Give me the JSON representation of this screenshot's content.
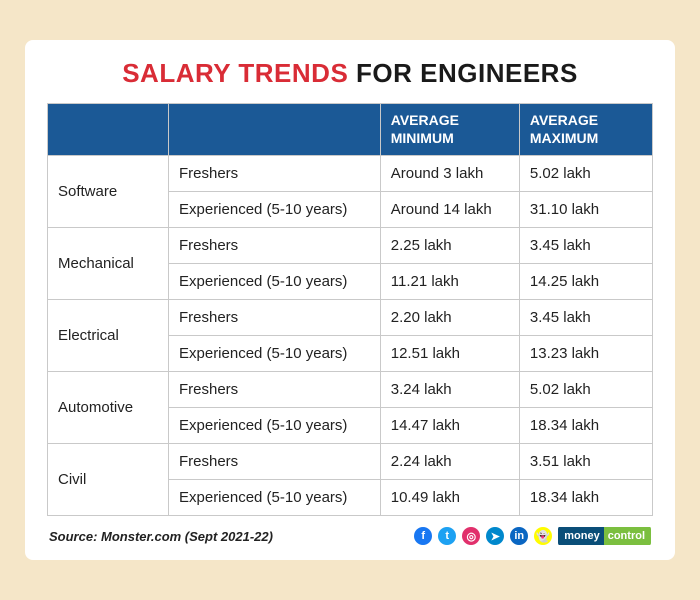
{
  "title": {
    "part1": "SALARY TRENDS",
    "part2": "FOR ENGINEERS"
  },
  "colors": {
    "header_bg": "#1b5996",
    "header_text": "#ffffff",
    "title_red": "#d92c36",
    "title_black": "#1a1a1a",
    "border": "#c9c9c9",
    "group_border": "#8a8a8a",
    "card_bg": "#ffffff",
    "page_bg": "#f5e6c8"
  },
  "typography": {
    "title_fontsize": 26,
    "title_weight": 900,
    "header_fontsize": 14,
    "cell_fontsize": 15,
    "source_fontsize": 13
  },
  "columns": [
    "",
    "",
    "AVERAGE MINIMUM",
    "AVERAGE MAXIMUM"
  ],
  "column_widths": [
    "20%",
    "35%",
    "23%",
    "22%"
  ],
  "categories": [
    {
      "name": "Software",
      "rows": [
        {
          "level": "Freshers",
          "min": "Around 3 lakh",
          "max": "5.02 lakh"
        },
        {
          "level": "Experienced (5-10 years)",
          "min": "Around 14 lakh",
          "max": "31.10 lakh"
        }
      ]
    },
    {
      "name": "Mechanical",
      "rows": [
        {
          "level": "Freshers",
          "min": "2.25 lakh",
          "max": "3.45 lakh"
        },
        {
          "level": "Experienced (5-10 years)",
          "min": "11.21 lakh",
          "max": "14.25 lakh"
        }
      ]
    },
    {
      "name": "Electrical",
      "rows": [
        {
          "level": "Freshers",
          "min": "2.20 lakh",
          "max": "3.45 lakh"
        },
        {
          "level": "Experienced (5-10 years)",
          "min": "12.51 lakh",
          "max": "13.23 lakh"
        }
      ]
    },
    {
      "name": "Automotive",
      "rows": [
        {
          "level": "Freshers",
          "min": "3.24 lakh",
          "max": "5.02 lakh"
        },
        {
          "level": "Experienced (5-10 years)",
          "min": "14.47 lakh",
          "max": "18.34 lakh"
        }
      ]
    },
    {
      "name": "Civil",
      "rows": [
        {
          "level": "Freshers",
          "min": "2.24 lakh",
          "max": "3.51 lakh"
        },
        {
          "level": "Experienced (5-10 years)",
          "min": "10.49 lakh",
          "max": "18.34 lakh"
        }
      ]
    }
  ],
  "source": "Source: Monster.com (Sept 2021-22)",
  "social_icons": [
    {
      "name": "facebook-icon",
      "bg": "#1877f2",
      "glyph": "f"
    },
    {
      "name": "twitter-icon",
      "bg": "#1da1f2",
      "glyph": "t"
    },
    {
      "name": "instagram-icon",
      "bg": "#e1306c",
      "glyph": "◎"
    },
    {
      "name": "telegram-icon",
      "bg": "#0088cc",
      "glyph": "➤"
    },
    {
      "name": "linkedin-icon",
      "bg": "#0a66c2",
      "glyph": "in"
    },
    {
      "name": "snapchat-icon",
      "bg": "#fffc00",
      "glyph": "👻"
    }
  ],
  "brand": {
    "part1": "money",
    "part2": "control"
  }
}
